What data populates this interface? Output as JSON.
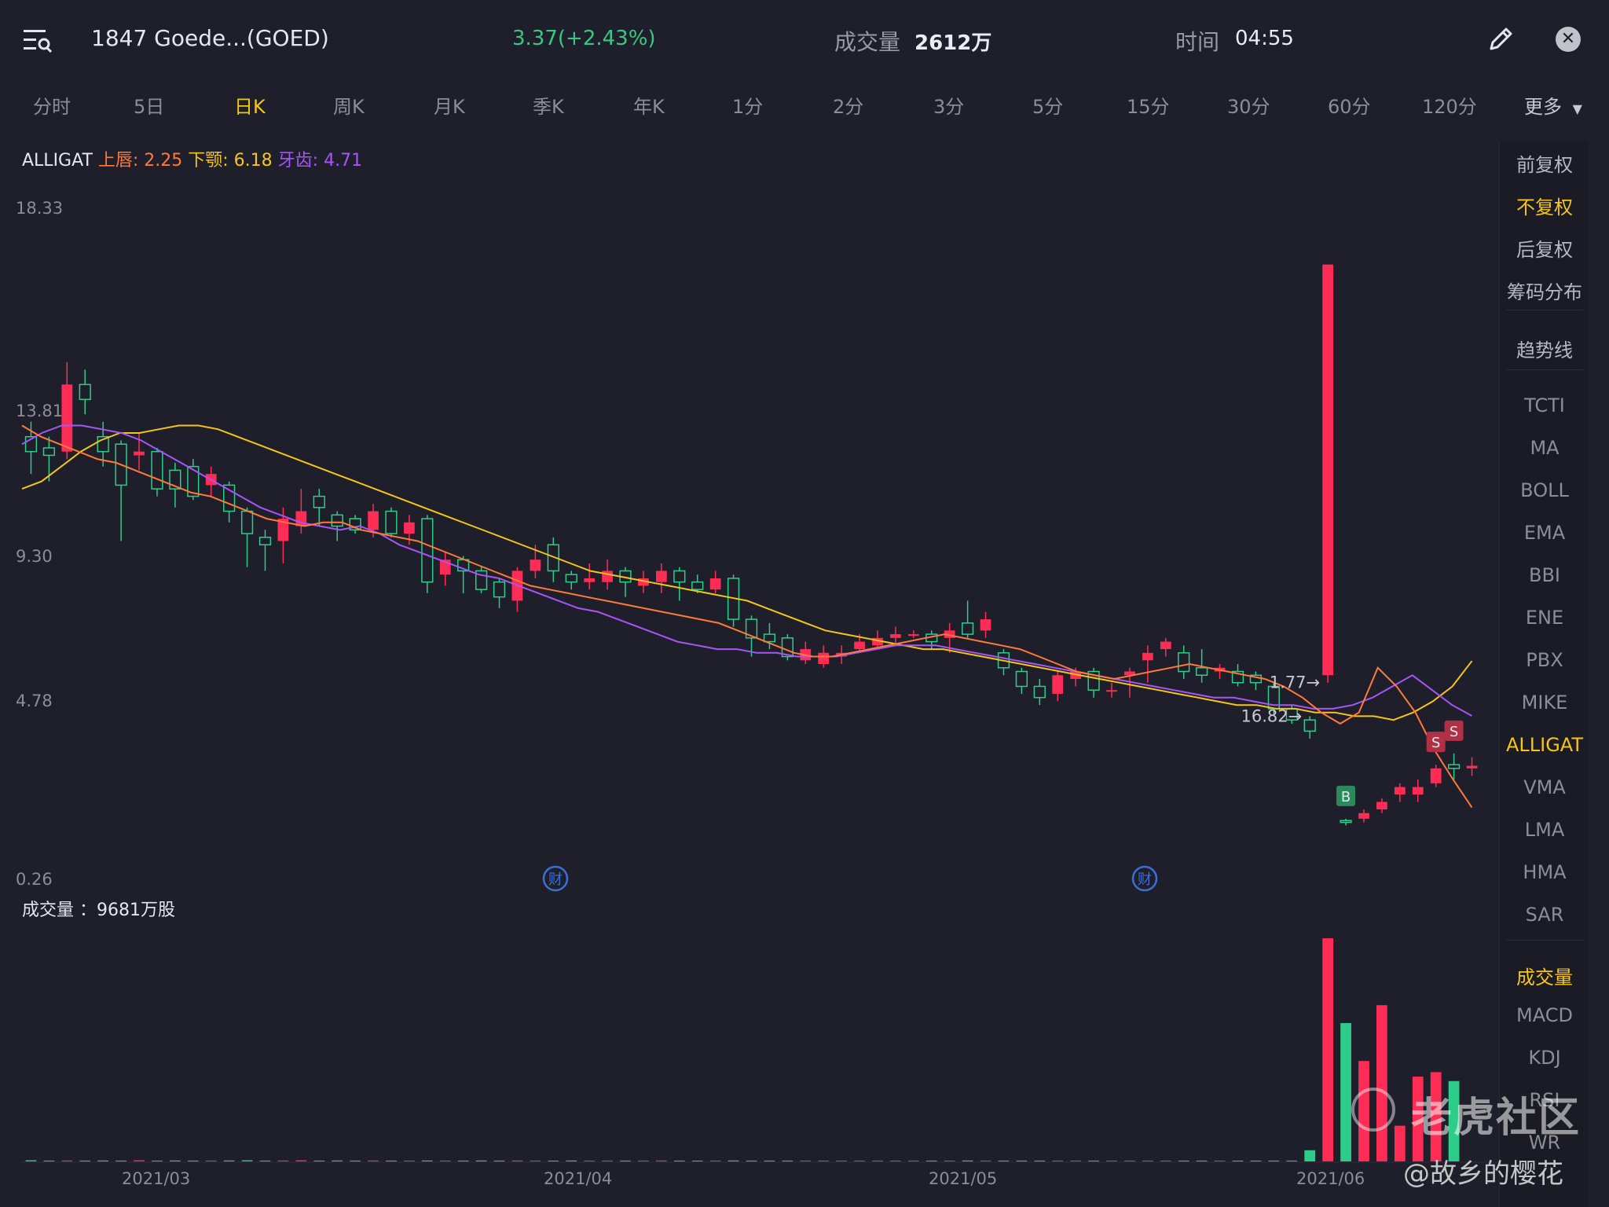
{
  "header": {
    "symbol": "1847 Goede...(GOED)",
    "price_change": "3.37(+2.43%)",
    "volume_label": "成交量",
    "volume_value": "2612万",
    "time_label": "时间",
    "time_value": "04:55"
  },
  "tabs": [
    {
      "label": "分时"
    },
    {
      "label": "5日"
    },
    {
      "label": "日K",
      "active": true
    },
    {
      "label": "周K"
    },
    {
      "label": "月K"
    },
    {
      "label": "季K"
    },
    {
      "label": "年K"
    },
    {
      "label": "1分"
    },
    {
      "label": "2分"
    },
    {
      "label": "3分"
    },
    {
      "label": "5分"
    },
    {
      "label": "15分"
    },
    {
      "label": "30分"
    },
    {
      "label": "60分"
    },
    {
      "label": "120分"
    },
    {
      "label": "更多"
    }
  ],
  "indicator": {
    "name": "ALLIGAT",
    "lip": "上唇: 2.25",
    "jaw": "下颚: 6.18",
    "teeth": "牙齿: 4.71"
  },
  "y_axis": [
    "18.33",
    "13.81",
    "9.30",
    "4.78",
    "0.26"
  ],
  "annotations": {
    "high": "16.82",
    "low": "1.77",
    "earnings_icon": "财",
    "buy": "B",
    "sell": "S"
  },
  "volume_panel": {
    "label": "成交量 ：9681万股"
  },
  "x_axis": [
    "2021/03",
    "2021/04",
    "2021/05",
    "2021/06"
  ],
  "sidebar": {
    "adjust": [
      {
        "label": "前复权"
      },
      {
        "label": "不复权",
        "active": true
      },
      {
        "label": "后复权"
      },
      {
        "label": "筹码分布"
      }
    ],
    "trend": {
      "label": "趋势线"
    },
    "main_indicators": [
      {
        "label": "TCTI"
      },
      {
        "label": "MA"
      },
      {
        "label": "BOLL"
      },
      {
        "label": "EMA"
      },
      {
        "label": "BBI"
      },
      {
        "label": "ENE"
      },
      {
        "label": "PBX"
      },
      {
        "label": "MIKE"
      },
      {
        "label": "ALLIGAT",
        "active": true
      },
      {
        "label": "VMA"
      },
      {
        "label": "LMA"
      },
      {
        "label": "HMA"
      },
      {
        "label": "SAR"
      }
    ],
    "sub_indicators": [
      {
        "label": "成交量",
        "active": true
      },
      {
        "label": "MACD"
      },
      {
        "label": "KDJ"
      },
      {
        "label": "RSI"
      },
      {
        "label": "WR"
      }
    ]
  },
  "watermark": {
    "brand": "老虎社区",
    "user": "@故乡的樱花"
  },
  "colors": {
    "up": "#ff2d55",
    "down": "#2ecc8a",
    "lip": "#ff7a3a",
    "jaw": "#f5c518",
    "teeth": "#a855f7",
    "accent": "#f5c518"
  },
  "chart_data": {
    "type": "candlestick",
    "ylim": [
      0.26,
      18.33
    ],
    "x_ticks": [
      "2021/03",
      "2021/04",
      "2021/05",
      "2021/06"
    ],
    "candles": [
      {
        "o": 12.2,
        "c": 11.8,
        "h": 12.6,
        "l": 11.2
      },
      {
        "o": 11.9,
        "c": 11.7,
        "h": 12.2,
        "l": 11.0
      },
      {
        "o": 11.8,
        "c": 13.6,
        "h": 14.2,
        "l": 11.6
      },
      {
        "o": 13.6,
        "c": 13.2,
        "h": 14.0,
        "l": 12.8
      },
      {
        "o": 12.2,
        "c": 11.8,
        "h": 12.6,
        "l": 11.4
      },
      {
        "o": 12.0,
        "c": 10.9,
        "h": 12.1,
        "l": 9.4
      },
      {
        "o": 11.7,
        "c": 11.8,
        "h": 12.3,
        "l": 11.3
      },
      {
        "o": 11.8,
        "c": 10.8,
        "h": 11.9,
        "l": 10.6
      },
      {
        "o": 11.3,
        "c": 10.8,
        "h": 11.5,
        "l": 10.3
      },
      {
        "o": 11.4,
        "c": 10.6,
        "h": 11.6,
        "l": 10.5
      },
      {
        "o": 10.9,
        "c": 11.2,
        "h": 11.4,
        "l": 10.6
      },
      {
        "o": 10.9,
        "c": 10.2,
        "h": 11.0,
        "l": 9.9
      },
      {
        "o": 10.2,
        "c": 9.6,
        "h": 10.3,
        "l": 8.7
      },
      {
        "o": 9.5,
        "c": 9.3,
        "h": 9.7,
        "l": 8.6
      },
      {
        "o": 9.4,
        "c": 10.0,
        "h": 10.3,
        "l": 8.8
      },
      {
        "o": 9.8,
        "c": 10.2,
        "h": 10.8,
        "l": 9.6
      },
      {
        "o": 10.6,
        "c": 10.3,
        "h": 10.8,
        "l": 9.8
      },
      {
        "o": 10.1,
        "c": 9.8,
        "h": 10.2,
        "l": 9.4
      },
      {
        "o": 10.0,
        "c": 9.7,
        "h": 10.1,
        "l": 9.6
      },
      {
        "o": 9.7,
        "c": 10.2,
        "h": 10.4,
        "l": 9.5
      },
      {
        "o": 10.2,
        "c": 9.6,
        "h": 10.3,
        "l": 9.5
      },
      {
        "o": 9.6,
        "c": 9.9,
        "h": 10.1,
        "l": 9.3
      },
      {
        "o": 10.0,
        "c": 8.3,
        "h": 10.1,
        "l": 8.0
      },
      {
        "o": 8.5,
        "c": 8.9,
        "h": 9.1,
        "l": 8.2
      },
      {
        "o": 8.9,
        "c": 8.6,
        "h": 9.0,
        "l": 8.0
      },
      {
        "o": 8.6,
        "c": 8.1,
        "h": 8.7,
        "l": 8.0
      },
      {
        "o": 8.3,
        "c": 7.9,
        "h": 8.4,
        "l": 7.6
      },
      {
        "o": 7.8,
        "c": 8.6,
        "h": 8.7,
        "l": 7.5
      },
      {
        "o": 8.6,
        "c": 8.9,
        "h": 9.3,
        "l": 8.4
      },
      {
        "o": 9.3,
        "c": 8.6,
        "h": 9.5,
        "l": 8.3
      },
      {
        "o": 8.5,
        "c": 8.3,
        "h": 8.6,
        "l": 8.1
      },
      {
        "o": 8.3,
        "c": 8.4,
        "h": 8.8,
        "l": 8.1
      },
      {
        "o": 8.3,
        "c": 8.6,
        "h": 8.9,
        "l": 8.1
      },
      {
        "o": 8.6,
        "c": 8.3,
        "h": 8.7,
        "l": 7.9
      },
      {
        "o": 8.2,
        "c": 8.4,
        "h": 8.6,
        "l": 8.0
      },
      {
        "o": 8.3,
        "c": 8.6,
        "h": 8.8,
        "l": 8.0
      },
      {
        "o": 8.6,
        "c": 8.3,
        "h": 8.7,
        "l": 7.8
      },
      {
        "o": 8.3,
        "c": 8.1,
        "h": 8.5,
        "l": 8.0
      },
      {
        "o": 8.1,
        "c": 8.4,
        "h": 8.6,
        "l": 8.0
      },
      {
        "o": 8.4,
        "c": 7.3,
        "h": 8.5,
        "l": 7.1
      },
      {
        "o": 7.3,
        "c": 6.8,
        "h": 7.4,
        "l": 6.3
      },
      {
        "o": 6.9,
        "c": 6.7,
        "h": 7.2,
        "l": 6.5
      },
      {
        "o": 6.8,
        "c": 6.3,
        "h": 6.9,
        "l": 6.2
      },
      {
        "o": 6.2,
        "c": 6.5,
        "h": 6.7,
        "l": 6.1
      },
      {
        "o": 6.1,
        "c": 6.4,
        "h": 6.6,
        "l": 6.0
      },
      {
        "o": 6.3,
        "c": 6.4,
        "h": 6.6,
        "l": 6.1
      },
      {
        "o": 6.5,
        "c": 6.7,
        "h": 6.9,
        "l": 6.4
      },
      {
        "o": 6.6,
        "c": 6.8,
        "h": 7.0,
        "l": 6.5
      },
      {
        "o": 6.8,
        "c": 6.9,
        "h": 7.1,
        "l": 6.6
      },
      {
        "o": 6.9,
        "c": 6.9,
        "h": 7.0,
        "l": 6.8
      },
      {
        "o": 6.9,
        "c": 6.7,
        "h": 7.0,
        "l": 6.5
      },
      {
        "o": 6.8,
        "c": 7.0,
        "h": 7.2,
        "l": 6.4
      },
      {
        "o": 7.2,
        "c": 6.9,
        "h": 7.8,
        "l": 6.8
      },
      {
        "o": 7.0,
        "c": 7.3,
        "h": 7.5,
        "l": 6.8
      },
      {
        "o": 6.4,
        "c": 6.0,
        "h": 6.5,
        "l": 5.8
      },
      {
        "o": 5.9,
        "c": 5.5,
        "h": 6.0,
        "l": 5.3
      },
      {
        "o": 5.5,
        "c": 5.2,
        "h": 5.7,
        "l": 5.0
      },
      {
        "o": 5.3,
        "c": 5.8,
        "h": 5.9,
        "l": 5.1
      },
      {
        "o": 5.7,
        "c": 5.9,
        "h": 6.0,
        "l": 5.5
      },
      {
        "o": 5.9,
        "c": 5.4,
        "h": 6.0,
        "l": 5.2
      },
      {
        "o": 5.4,
        "c": 5.4,
        "h": 5.6,
        "l": 5.2
      },
      {
        "o": 5.8,
        "c": 5.9,
        "h": 6.0,
        "l": 5.2
      },
      {
        "o": 6.2,
        "c": 6.4,
        "h": 6.6,
        "l": 5.6
      },
      {
        "o": 6.5,
        "c": 6.7,
        "h": 6.8,
        "l": 6.3
      },
      {
        "o": 6.4,
        "c": 5.9,
        "h": 6.6,
        "l": 5.7
      },
      {
        "o": 6.0,
        "c": 5.8,
        "h": 6.5,
        "l": 5.6
      },
      {
        "o": 5.9,
        "c": 6.0,
        "h": 6.1,
        "l": 5.7
      },
      {
        "o": 5.9,
        "c": 5.6,
        "h": 6.1,
        "l": 5.5
      },
      {
        "o": 5.8,
        "c": 5.6,
        "h": 5.9,
        "l": 5.4
      },
      {
        "o": 5.5,
        "c": 4.9,
        "h": 5.6,
        "l": 4.7
      },
      {
        "o": 4.9,
        "c": 4.6,
        "h": 5.0,
        "l": 4.5
      },
      {
        "o": 4.6,
        "c": 4.3,
        "h": 4.7,
        "l": 4.1
      },
      {
        "o": 5.8,
        "c": 16.82,
        "h": 16.82,
        "l": 5.6
      },
      {
        "o": 1.9,
        "c": 1.85,
        "h": 1.95,
        "l": 1.77
      },
      {
        "o": 1.95,
        "c": 2.1,
        "h": 2.2,
        "l": 1.85
      },
      {
        "o": 2.2,
        "c": 2.4,
        "h": 2.5,
        "l": 2.1
      },
      {
        "o": 2.6,
        "c": 2.8,
        "h": 2.9,
        "l": 2.4
      },
      {
        "o": 2.6,
        "c": 2.8,
        "h": 3.0,
        "l": 2.4
      },
      {
        "o": 2.9,
        "c": 3.3,
        "h": 3.4,
        "l": 2.8
      },
      {
        "o": 3.4,
        "c": 3.3,
        "h": 3.7,
        "l": 3.0
      },
      {
        "o": 3.3,
        "c": 3.37,
        "h": 3.6,
        "l": 3.1
      }
    ],
    "lips_series": [
      12.5,
      12.2,
      12.0,
      11.8,
      11.6,
      11.5,
      11.3,
      11.1,
      10.9,
      10.7,
      10.6,
      10.4,
      10.2,
      10.0,
      9.9,
      9.8,
      9.9,
      9.9,
      9.7,
      9.6,
      9.5,
      9.4,
      9.2,
      9.0,
      8.8,
      8.6,
      8.4,
      8.2,
      8.1,
      8.0,
      7.9,
      7.8,
      7.7,
      7.6,
      7.5,
      7.4,
      7.3,
      7.2,
      7.0,
      6.8,
      6.6,
      6.4,
      6.3,
      6.3,
      6.4,
      6.5,
      6.6,
      6.7,
      6.8,
      6.9,
      6.8,
      6.7,
      6.6,
      6.5,
      6.3,
      6.1,
      5.9,
      5.8,
      5.7,
      5.8,
      5.9,
      6.0,
      6.1,
      6.0,
      5.9,
      5.8,
      5.7,
      5.5,
      5.2,
      4.8,
      4.5,
      4.8,
      6.0,
      5.5,
      4.8,
      3.8,
      3.0,
      2.25
    ],
    "jaw_series": [
      10.8,
      11.0,
      11.4,
      11.8,
      12.1,
      12.3,
      12.3,
      12.4,
      12.5,
      12.5,
      12.4,
      12.2,
      12.0,
      11.8,
      11.6,
      11.4,
      11.2,
      11.0,
      10.8,
      10.6,
      10.4,
      10.2,
      10.0,
      9.8,
      9.6,
      9.4,
      9.2,
      9.0,
      8.8,
      8.6,
      8.5,
      8.4,
      8.3,
      8.2,
      8.1,
      8.0,
      7.9,
      7.8,
      7.6,
      7.4,
      7.2,
      7.0,
      6.9,
      6.8,
      6.7,
      6.6,
      6.5,
      6.5,
      6.4,
      6.3,
      6.2,
      6.1,
      6.0,
      5.9,
      5.8,
      5.7,
      5.6,
      5.5,
      5.4,
      5.3,
      5.2,
      5.1,
      5.0,
      5.0,
      4.9,
      4.9,
      4.8,
      4.8,
      4.7,
      4.7,
      4.6,
      4.8,
      5.1,
      5.5,
      6.18
    ],
    "teeth_series": [
      12.0,
      12.3,
      12.5,
      12.5,
      12.4,
      12.3,
      12.1,
      11.8,
      11.5,
      11.2,
      10.9,
      10.6,
      10.3,
      10.1,
      9.9,
      9.8,
      9.7,
      9.8,
      9.6,
      9.3,
      9.1,
      8.9,
      8.7,
      8.5,
      8.4,
      8.2,
      8.0,
      7.8,
      7.6,
      7.5,
      7.3,
      7.1,
      6.9,
      6.7,
      6.6,
      6.5,
      6.5,
      6.4,
      6.4,
      6.3,
      6.3,
      6.3,
      6.4,
      6.5,
      6.6,
      6.6,
      6.6,
      6.5,
      6.4,
      6.3,
      6.2,
      6.1,
      6.0,
      5.9,
      5.8,
      5.7,
      5.6,
      5.5,
      5.4,
      5.3,
      5.2,
      5.2,
      5.1,
      5.0,
      5.0,
      4.9,
      4.9,
      5.0,
      5.2,
      5.5,
      5.8,
      5.4,
      5.0,
      4.71
    ],
    "volume": [
      0.5,
      0.3,
      0.4,
      0.3,
      0.4,
      0.3,
      0.5,
      0.3,
      0.4,
      0.3,
      0.3,
      0.4,
      0.5,
      0.3,
      0.4,
      0.5,
      0.3,
      0.4,
      0.3,
      0.4,
      0.3,
      0.3,
      0.4,
      0.3,
      0.3,
      0.4,
      0.3,
      0.4,
      0.3,
      0.3,
      0.4,
      0.3,
      0.3,
      0.3,
      0.3,
      0.4,
      0.3,
      0.3,
      0.3,
      0.4,
      0.3,
      0.3,
      0.3,
      0.3,
      0.3,
      0.3,
      0.3,
      0.3,
      0.3,
      0.3,
      0.3,
      0.3,
      0.4,
      0.3,
      0.3,
      0.3,
      0.3,
      0.3,
      0.3,
      0.3,
      0.3,
      0.3,
      0.3,
      0.3,
      0.3,
      0.3,
      0.3,
      0.3,
      0.3,
      0.3,
      0.3,
      5,
      100,
      62,
      45,
      70,
      16,
      38,
      40,
      36
    ],
    "markers": [
      {
        "index": 71,
        "label": "16.82",
        "type": "high"
      },
      {
        "index": 72,
        "label": "1.77",
        "type": "low"
      }
    ]
  }
}
